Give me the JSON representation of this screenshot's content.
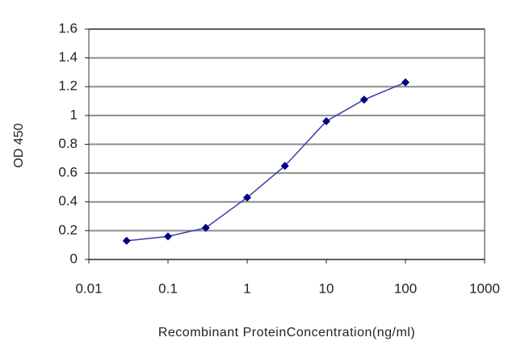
{
  "chart_data": {
    "type": "line",
    "x_label": "Recombinant ProteinConcentration(ng/ml)",
    "y_label": "OD 450",
    "x": [
      0.03,
      0.1,
      0.3,
      1,
      3,
      10,
      30,
      100
    ],
    "series": [
      {
        "color": "#000080",
        "line_color": "#3a3ab0",
        "values": [
          0.13,
          0.16,
          0.22,
          0.43,
          0.65,
          0.96,
          1.11,
          1.23
        ]
      }
    ],
    "xlim": [
      0.01,
      1000
    ],
    "xticks": [
      0.01,
      0.1,
      1,
      10,
      100,
      1000
    ],
    "log_x": true,
    "ylim": [
      0,
      1.6
    ],
    "yticks": [
      0,
      0.2,
      0.4,
      0.6,
      0.8,
      1,
      1.2,
      1.4,
      1.6
    ],
    "grid": true
  }
}
